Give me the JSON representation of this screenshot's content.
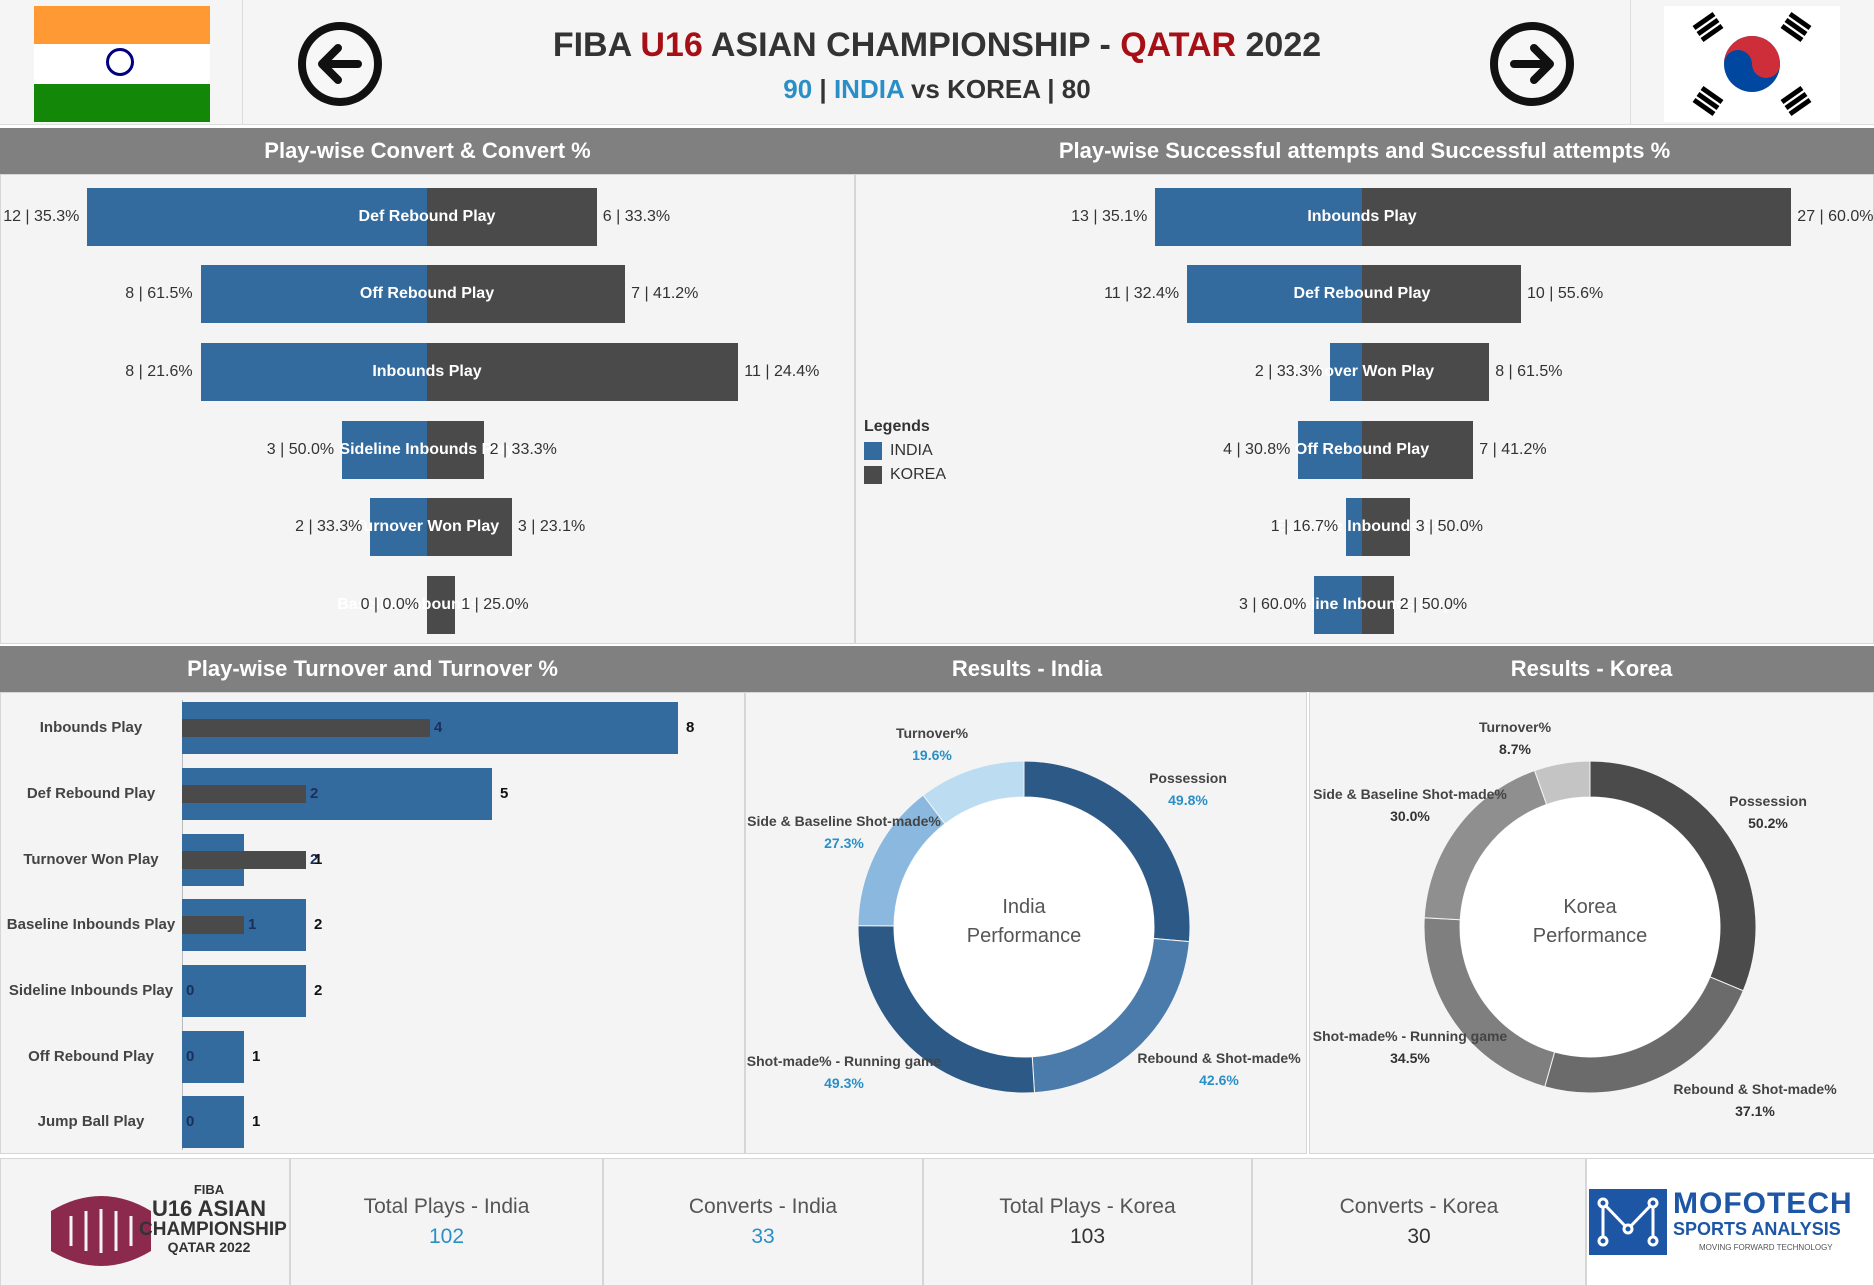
{
  "header": {
    "title_part1": "FIBA ",
    "title_part2": "U16",
    "title_part3": " ASIAN CHAMPIONSHIP - ",
    "title_part4": "QATAR",
    "title_part5": " 2022",
    "score_india": "90",
    "sep1": " | ",
    "team_india": "INDIA",
    "vs": " vs KOREA | ",
    "score_korea": "80",
    "prev_icon": "arrow-left-icon",
    "next_icon": "arrow-right-icon"
  },
  "colors": {
    "india": "#336b9e",
    "korea": "#4a4a4a",
    "accent_red": "#a50f15",
    "accent_blue": "#2a8fc7",
    "header_bg": "#808080"
  },
  "panels": {
    "convert_title": "Play-wise Convert & Convert %",
    "success_title": "Play-wise Successful attempts and Successful attempts %",
    "turnover_title": "Play-wise Turnover and Turnover %",
    "results_india_title": "Results - India",
    "results_korea_title": "Results - Korea"
  },
  "legend": {
    "title": "Legends",
    "india": "INDIA",
    "korea": "KOREA"
  },
  "chart_data": [
    {
      "type": "bar",
      "title": "Play-wise Convert & Convert %",
      "categories": [
        "Def Rebound Play",
        "Off Rebound Play",
        "Inbounds Play",
        "Sideline Inbounds Play",
        "Turnover Won Play",
        "Baseline Inbounds Play"
      ],
      "series": [
        {
          "name": "INDIA",
          "values": [
            12,
            8,
            8,
            3,
            2,
            0
          ],
          "labels": [
            "12 | 35.3%",
            "8 | 61.5%",
            "8 | 21.6%",
            "3 | 50.0%",
            "2 | 33.3%",
            "0 | 0.0%"
          ]
        },
        {
          "name": "KOREA",
          "values": [
            6,
            7,
            11,
            2,
            3,
            1
          ],
          "labels": [
            "6 | 33.3%",
            "7 | 41.2%",
            "11 | 24.4%",
            "2 | 33.3%",
            "3 | 23.1%",
            "1 | 25.0%"
          ]
        }
      ]
    },
    {
      "type": "bar",
      "title": "Play-wise Successful attempts and Successful attempts %",
      "categories": [
        "Inbounds Play",
        "Def Rebound Play",
        "Turnover Won Play",
        "Off Rebound Play",
        "Baseline Inbounds Play",
        "Sideline Inbounds Play"
      ],
      "series": [
        {
          "name": "INDIA",
          "values": [
            13,
            11,
            2,
            4,
            1,
            3
          ],
          "labels": [
            "13 | 35.1%",
            "11 | 32.4%",
            "2 | 33.3%",
            "4 | 30.8%",
            "1 | 16.7%",
            "3 | 60.0%"
          ]
        },
        {
          "name": "KOREA",
          "values": [
            27,
            10,
            8,
            7,
            3,
            2
          ],
          "labels": [
            "27 | 60.0%",
            "10 | 55.6%",
            "8 | 61.5%",
            "7 | 41.2%",
            "3 | 50.0%",
            "2 | 50.0%"
          ]
        }
      ]
    },
    {
      "type": "bar",
      "title": "Play-wise Turnover and Turnover %",
      "categories": [
        "Inbounds Play",
        "Def Rebound Play",
        "Turnover Won Play",
        "Baseline Inbounds Play",
        "Sideline Inbounds Play",
        "Off Rebound Play",
        "Jump Ball Play"
      ],
      "series": [
        {
          "name": "INDIA",
          "values": [
            8,
            5,
            1,
            2,
            2,
            1,
            1
          ]
        },
        {
          "name": "KOREA",
          "values": [
            4,
            2,
            2,
            1,
            0,
            0,
            0
          ]
        }
      ]
    },
    {
      "type": "pie",
      "title": "Results - India",
      "center_label": [
        "India",
        "Performance"
      ],
      "slices": [
        {
          "label": "Possession",
          "value": 49.8,
          "text": "49.8%",
          "color": "#2d5986"
        },
        {
          "label": "Rebound & Shot-made%",
          "value": 42.6,
          "text": "42.6%",
          "color": "#4a7bab"
        },
        {
          "label": "Shot-made% - Running game",
          "value": 49.3,
          "text": "49.3%",
          "color": "#2d5986"
        },
        {
          "label": "Side & Baseline Shot-made%",
          "value": 27.3,
          "text": "27.3%",
          "color": "#8ab8df"
        },
        {
          "label": "Turnover%",
          "value": 19.6,
          "text": "19.6%",
          "color": "#bcdcf2"
        }
      ]
    },
    {
      "type": "pie",
      "title": "Results - Korea",
      "center_label": [
        "Korea",
        "Performance"
      ],
      "slices": [
        {
          "label": "Possession",
          "value": 50.2,
          "text": "50.2%",
          "color": "#4b4b4b"
        },
        {
          "label": "Rebound & Shot-made%",
          "value": 37.1,
          "text": "37.1%",
          "color": "#6b6b6b"
        },
        {
          "label": "Shot-made% - Running game",
          "value": 34.5,
          "text": "34.5%",
          "color": "#7f7f7f"
        },
        {
          "label": "Side & Baseline Shot-made%",
          "value": 30.0,
          "text": "30.0%",
          "color": "#8f8f8f"
        },
        {
          "label": "Turnover%",
          "value": 8.7,
          "text": "8.7%",
          "color": "#c4c4c4"
        }
      ]
    }
  ],
  "kpis": [
    {
      "title": "Total Plays - India",
      "value": "102",
      "color": "#2a8fc7"
    },
    {
      "title": "Converts  - India",
      "value": "33",
      "color": "#2a8fc7"
    },
    {
      "title": "Total Plays - Korea",
      "value": "103",
      "color": "#333333"
    },
    {
      "title": "Converts  - Korea",
      "value": "30",
      "color": "#333333"
    }
  ],
  "logo_left": {
    "line1": "FIBA",
    "line2": "U16 ASIAN",
    "line3": "CHAMPIONSHIP",
    "line4": "QATAR 2022"
  },
  "logo_right": {
    "line1": "MOFOTECH",
    "line2": "SPORTS ANALYSIS",
    "line3": "MOVING FORWARD TECHNOLOGY"
  }
}
